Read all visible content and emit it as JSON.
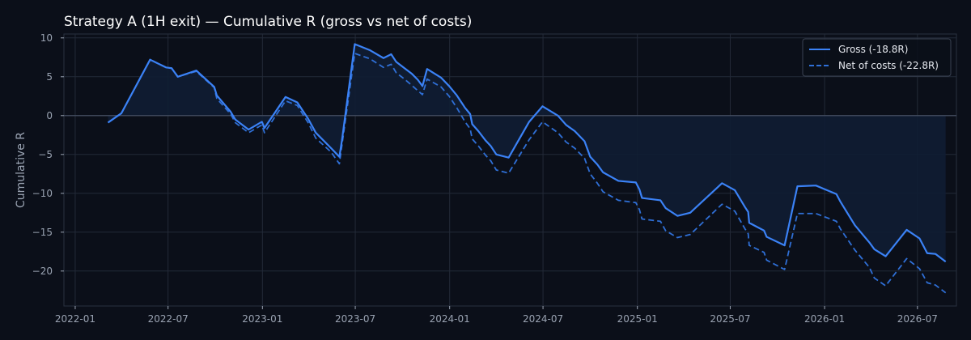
{
  "chart_data": {
    "type": "line",
    "title": "Strategy A (1H exit) — Cumulative R (gross vs net of costs)",
    "xlabel": "",
    "ylabel": "Cumulative R",
    "ylim": [
      -24.5,
      10.5
    ],
    "xlim": [
      "2021-12-10",
      "2026-09-15"
    ],
    "grid": true,
    "legend_position": "top-right",
    "yticks": [
      10,
      5,
      0,
      -5,
      -10,
      -15,
      -20
    ],
    "ytick_labels": [
      "10",
      "5",
      "0",
      "−5",
      "−10",
      "−15",
      "−20"
    ],
    "xticks": [
      "2022-01-01",
      "2022-07-01",
      "2023-01-01",
      "2023-07-01",
      "2024-01-01",
      "2024-07-01",
      "2025-01-01",
      "2025-07-01",
      "2026-01-01",
      "2026-07-01"
    ],
    "xtick_labels": [
      "2022-01",
      "2022-07",
      "2023-01",
      "2023-07",
      "2024-01",
      "2024-07",
      "2025-01",
      "2025-07",
      "2026-01",
      "2026-07"
    ],
    "colors": {
      "gross": "#3b82f6",
      "net": "#2f6fd6",
      "fill": "#0f1d33",
      "zero_line": "#4a5568",
      "background": "#0b0f19"
    },
    "series": [
      {
        "name": "Gross (-18.8R)",
        "style": "solid",
        "points": [
          [
            "2022-03-06",
            -0.9
          ],
          [
            "2022-04-01",
            0.3
          ],
          [
            "2022-05-27",
            7.2
          ],
          [
            "2022-06-27",
            6.2
          ],
          [
            "2022-07-08",
            6.1
          ],
          [
            "2022-07-20",
            5.0
          ],
          [
            "2022-08-25",
            5.8
          ],
          [
            "2022-09-14",
            4.6
          ],
          [
            "2022-09-29",
            3.7
          ],
          [
            "2022-10-04",
            2.6
          ],
          [
            "2022-10-31",
            0.5
          ],
          [
            "2022-11-09",
            -0.5
          ],
          [
            "2022-12-05",
            -1.8
          ],
          [
            "2022-12-31",
            -0.8
          ],
          [
            "2023-01-05",
            -1.6
          ],
          [
            "2023-02-15",
            2.4
          ],
          [
            "2023-03-10",
            1.7
          ],
          [
            "2023-03-31",
            -0.4
          ],
          [
            "2023-04-15",
            -2.2
          ],
          [
            "2023-05-15",
            -4.2
          ],
          [
            "2023-05-31",
            -5.3
          ],
          [
            "2023-06-05",
            -3.2
          ],
          [
            "2023-06-30",
            9.2
          ],
          [
            "2023-07-30",
            8.4
          ],
          [
            "2023-08-25",
            7.4
          ],
          [
            "2023-09-09",
            7.9
          ],
          [
            "2023-09-19",
            6.9
          ],
          [
            "2023-10-05",
            6.1
          ],
          [
            "2023-10-19",
            5.4
          ],
          [
            "2023-10-31",
            4.6
          ],
          [
            "2023-11-09",
            3.8
          ],
          [
            "2023-11-18",
            6.0
          ],
          [
            "2023-12-15",
            4.9
          ],
          [
            "2023-12-31",
            3.8
          ],
          [
            "2024-01-15",
            2.6
          ],
          [
            "2024-01-31",
            1.0
          ],
          [
            "2024-02-10",
            0.2
          ],
          [
            "2024-02-14",
            -1.1
          ],
          [
            "2024-02-26",
            -2.0
          ],
          [
            "2024-03-11",
            -3.2
          ],
          [
            "2024-03-21",
            -3.9
          ],
          [
            "2024-04-01",
            -5.0
          ],
          [
            "2024-04-25",
            -5.4
          ],
          [
            "2024-06-04",
            -0.8
          ],
          [
            "2024-06-30",
            1.2
          ],
          [
            "2024-07-30",
            0.0
          ],
          [
            "2024-08-15",
            -1.2
          ],
          [
            "2024-09-01",
            -2.0
          ],
          [
            "2024-09-20",
            -3.3
          ],
          [
            "2024-10-01",
            -5.3
          ],
          [
            "2024-10-15",
            -6.3
          ],
          [
            "2024-10-26",
            -7.3
          ],
          [
            "2024-11-25",
            -8.4
          ],
          [
            "2024-12-29",
            -8.6
          ],
          [
            "2025-01-05",
            -9.5
          ],
          [
            "2025-01-10",
            -10.6
          ],
          [
            "2025-02-15",
            -10.9
          ],
          [
            "2025-02-25",
            -11.9
          ],
          [
            "2025-03-20",
            -12.9
          ],
          [
            "2025-04-14",
            -12.5
          ],
          [
            "2025-06-15",
            -8.7
          ],
          [
            "2025-07-10",
            -9.6
          ],
          [
            "2025-07-30",
            -11.8
          ],
          [
            "2025-08-05",
            -12.4
          ],
          [
            "2025-08-07",
            -13.8
          ],
          [
            "2025-09-05",
            -14.8
          ],
          [
            "2025-09-10",
            -15.6
          ],
          [
            "2025-10-15",
            -16.7
          ],
          [
            "2025-11-09",
            -9.1
          ],
          [
            "2025-12-15",
            -9.0
          ],
          [
            "2026-01-24",
            -10.1
          ],
          [
            "2026-02-01",
            -11.1
          ],
          [
            "2026-03-01",
            -14.1
          ],
          [
            "2026-03-20",
            -15.6
          ],
          [
            "2026-03-29",
            -16.3
          ],
          [
            "2026-04-08",
            -17.2
          ],
          [
            "2026-04-30",
            -18.1
          ],
          [
            "2026-06-10",
            -14.7
          ],
          [
            "2026-07-05",
            -15.8
          ],
          [
            "2026-07-20",
            -17.7
          ],
          [
            "2026-08-05",
            -17.8
          ],
          [
            "2026-08-25",
            -18.8
          ]
        ]
      },
      {
        "name": "Net of costs (-22.8R)",
        "style": "dashed",
        "points": [
          [
            "2022-03-06",
            -0.9
          ],
          [
            "2022-04-01",
            0.3
          ],
          [
            "2022-05-27",
            7.2
          ],
          [
            "2022-06-27",
            6.2
          ],
          [
            "2022-07-08",
            6.1
          ],
          [
            "2022-07-20",
            5.0
          ],
          [
            "2022-08-25",
            5.7
          ],
          [
            "2022-09-14",
            4.5
          ],
          [
            "2022-09-29",
            3.6
          ],
          [
            "2022-10-04",
            2.2
          ],
          [
            "2022-10-31",
            0.2
          ],
          [
            "2022-11-09",
            -0.9
          ],
          [
            "2022-12-05",
            -2.2
          ],
          [
            "2022-12-31",
            -1.2
          ],
          [
            "2023-01-05",
            -2.2
          ],
          [
            "2023-02-15",
            1.9
          ],
          [
            "2023-03-10",
            1.3
          ],
          [
            "2023-03-31",
            -0.9
          ],
          [
            "2023-04-15",
            -2.9
          ],
          [
            "2023-05-15",
            -4.7
          ],
          [
            "2023-05-31",
            -6.2
          ],
          [
            "2023-06-05",
            -3.8
          ],
          [
            "2023-06-30",
            8.0
          ],
          [
            "2023-07-30",
            7.3
          ],
          [
            "2023-08-25",
            6.2
          ],
          [
            "2023-09-09",
            6.6
          ],
          [
            "2023-09-19",
            5.5
          ],
          [
            "2023-10-05",
            4.7
          ],
          [
            "2023-10-19",
            3.9
          ],
          [
            "2023-10-31",
            3.2
          ],
          [
            "2023-11-09",
            2.7
          ],
          [
            "2023-11-18",
            4.7
          ],
          [
            "2023-12-15",
            3.7
          ],
          [
            "2023-12-31",
            2.5
          ],
          [
            "2024-01-15",
            1.0
          ],
          [
            "2024-01-31",
            -0.8
          ],
          [
            "2024-02-10",
            -1.7
          ],
          [
            "2024-02-14",
            -3.0
          ],
          [
            "2024-02-26",
            -3.9
          ],
          [
            "2024-03-11",
            -5.1
          ],
          [
            "2024-03-21",
            -5.8
          ],
          [
            "2024-04-01",
            -7.0
          ],
          [
            "2024-04-25",
            -7.4
          ],
          [
            "2024-06-04",
            -3.1
          ],
          [
            "2024-06-30",
            -0.8
          ],
          [
            "2024-07-30",
            -2.2
          ],
          [
            "2024-08-15",
            -3.4
          ],
          [
            "2024-09-01",
            -4.2
          ],
          [
            "2024-09-20",
            -5.5
          ],
          [
            "2024-10-01",
            -7.5
          ],
          [
            "2024-10-15",
            -8.7
          ],
          [
            "2024-10-26",
            -9.8
          ],
          [
            "2024-11-25",
            -10.9
          ],
          [
            "2024-12-29",
            -11.2
          ],
          [
            "2025-01-05",
            -12.1
          ],
          [
            "2025-01-10",
            -13.3
          ],
          [
            "2025-02-15",
            -13.6
          ],
          [
            "2025-02-25",
            -14.8
          ],
          [
            "2025-03-20",
            -15.7
          ],
          [
            "2025-04-14",
            -15.3
          ],
          [
            "2025-06-15",
            -11.4
          ],
          [
            "2025-07-10",
            -12.3
          ],
          [
            "2025-07-30",
            -14.6
          ],
          [
            "2025-08-05",
            -15.2
          ],
          [
            "2025-08-07",
            -16.7
          ],
          [
            "2025-09-05",
            -17.6
          ],
          [
            "2025-09-10",
            -18.6
          ],
          [
            "2025-10-15",
            -19.8
          ],
          [
            "2025-11-09",
            -12.6
          ],
          [
            "2025-12-15",
            -12.6
          ],
          [
            "2026-01-24",
            -13.6
          ],
          [
            "2026-02-01",
            -14.6
          ],
          [
            "2026-03-01",
            -17.3
          ],
          [
            "2026-03-20",
            -18.8
          ],
          [
            "2026-03-29",
            -19.5
          ],
          [
            "2026-04-08",
            -20.9
          ],
          [
            "2026-04-30",
            -21.9
          ],
          [
            "2026-06-10",
            -18.4
          ],
          [
            "2026-07-05",
            -19.7
          ],
          [
            "2026-07-20",
            -21.5
          ],
          [
            "2026-08-05",
            -21.8
          ],
          [
            "2026-08-25",
            -22.8
          ]
        ]
      }
    ]
  }
}
